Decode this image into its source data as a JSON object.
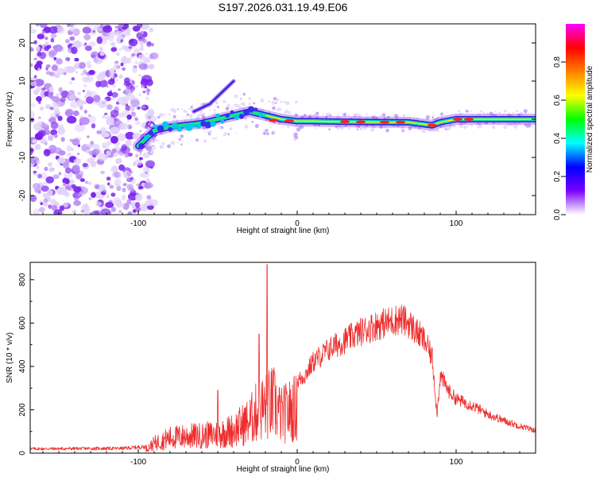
{
  "title": "S197.2026.031.19.49.E06",
  "chart_data": [
    {
      "type": "heatmap",
      "name": "spectrogram",
      "xlabel": "Height of straight line (km)",
      "ylabel": "Frequency (Hz)",
      "xlim": [
        -168,
        150
      ],
      "ylim": [
        -25,
        25
      ],
      "xticks": [
        -100,
        0,
        100
      ],
      "yticks": [
        -20,
        -10,
        0,
        10,
        20
      ],
      "xtick_labels": [
        "-100",
        "0",
        "100"
      ],
      "ytick_labels": [
        "-20",
        "-10",
        "0",
        "10",
        "20"
      ],
      "noise_region_end_km": -95,
      "signal_track": {
        "x": [
          -100,
          -95,
          -90,
          -80,
          -70,
          -60,
          -50,
          -40,
          -30,
          -20,
          -10,
          0,
          10,
          20,
          40,
          60,
          70,
          85,
          90,
          100,
          110,
          120,
          150
        ],
        "y": [
          -7,
          -5,
          -3,
          -2,
          -1.5,
          -1,
          0,
          1,
          2,
          1,
          0,
          -0.5,
          -0.5,
          -0.6,
          -0.7,
          -0.8,
          -0.8,
          -1.6,
          -0.8,
          0,
          0,
          0,
          0
        ]
      },
      "side_branch": {
        "x": [
          -65,
          -55,
          -45,
          -40
        ],
        "y": [
          2,
          4,
          8,
          10
        ]
      },
      "colorbar": {
        "label": "Normalized spectral amplitude",
        "range": [
          0,
          1
        ],
        "ticks": [
          0.0,
          0.2,
          0.4,
          0.6,
          0.8
        ],
        "tick_labels": [
          "0.0",
          "0.2",
          "0.4",
          "0.6",
          "0.8"
        ],
        "colors": [
          "#ffffff",
          "#7a00ff",
          "#0000ff",
          "#00ffff",
          "#00ff00",
          "#ffff00",
          "#ff8000",
          "#ff0000",
          "#ff00ff"
        ]
      }
    },
    {
      "type": "line",
      "name": "snr",
      "xlabel": "Height of straight line (km)",
      "ylabel": "SNR (10 * v/v)",
      "xlim": [
        -168,
        150
      ],
      "ylim": [
        0,
        880
      ],
      "xticks": [
        -100,
        0,
        100
      ],
      "yticks": [
        0,
        200,
        400,
        600,
        800
      ],
      "xtick_labels": [
        "-100",
        "0",
        "100"
      ],
      "ytick_labels": [
        "0",
        "200",
        "400",
        "600",
        "800"
      ],
      "color": "#ee2b2b",
      "envelope": {
        "x": [
          -168,
          -110,
          -95,
          -90,
          -80,
          -70,
          -60,
          -50,
          -40,
          -30,
          -25,
          -20,
          -15,
          -10,
          -5,
          0,
          5,
          10,
          20,
          30,
          40,
          50,
          60,
          65,
          70,
          80,
          85,
          88,
          90,
          95,
          100,
          110,
          120,
          130,
          140,
          150
        ],
        "y": [
          20,
          22,
          30,
          70,
          110,
          120,
          125,
          135,
          165,
          230,
          300,
          330,
          360,
          270,
          300,
          330,
          360,
          420,
          480,
          520,
          560,
          590,
          610,
          620,
          600,
          520,
          440,
          180,
          360,
          290,
          250,
          220,
          180,
          150,
          125,
          105
        ]
      },
      "spikes": [
        {
          "x": -19,
          "y": 870
        },
        {
          "x": -24,
          "y": 550
        },
        {
          "x": -50,
          "y": 290
        }
      ]
    }
  ]
}
